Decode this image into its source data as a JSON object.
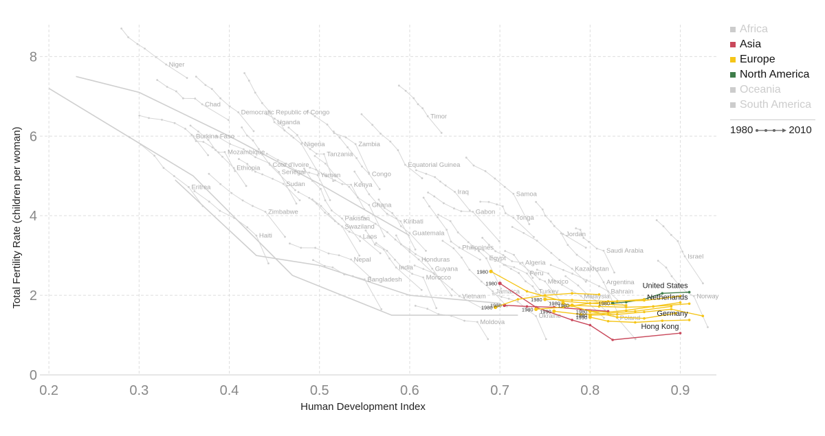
{
  "chart_data": {
    "type": "scatter",
    "title": "",
    "xlabel": "Human Development Index",
    "ylabel": "Total Fertility Rate (children per woman)",
    "xlim": [
      0.19,
      0.94
    ],
    "ylim": [
      0,
      8.8
    ],
    "xticks": [
      "0.2",
      "0.3",
      "0.4",
      "0.5",
      "0.6",
      "0.7",
      "0.8",
      "0.9"
    ],
    "yticks": [
      "0",
      "2",
      "4",
      "6",
      "8"
    ],
    "grid": true,
    "legend": {
      "placement": "right",
      "items": [
        {
          "name": "Africa",
          "color": "#cccccc",
          "active": false
        },
        {
          "name": "Asia",
          "color": "#c9485b",
          "active": true
        },
        {
          "name": "Europe",
          "color": "#f5c518",
          "active": true
        },
        {
          "name": "North America",
          "color": "#3e7d4a",
          "active": true
        },
        {
          "name": "Oceania",
          "color": "#cccccc",
          "active": false
        },
        {
          "name": "South America",
          "color": "#cccccc",
          "active": false
        }
      ],
      "timeline_start": "1980",
      "timeline_end": "2010"
    },
    "background_labels": [
      {
        "name": "Niger",
        "x": 0.33,
        "y": 7.8
      },
      {
        "name": "Chad",
        "x": 0.37,
        "y": 6.8
      },
      {
        "name": "Democratic Republic of Congo",
        "x": 0.41,
        "y": 6.6
      },
      {
        "name": "Uganda",
        "x": 0.45,
        "y": 6.35
      },
      {
        "name": "Timor",
        "x": 0.62,
        "y": 6.5
      },
      {
        "name": "Burkina Faso",
        "x": 0.36,
        "y": 6.0
      },
      {
        "name": "Nigeria",
        "x": 0.48,
        "y": 5.8
      },
      {
        "name": "Zambia",
        "x": 0.54,
        "y": 5.8
      },
      {
        "name": "Mozambique",
        "x": 0.395,
        "y": 5.6
      },
      {
        "name": "Tanzania",
        "x": 0.505,
        "y": 5.55
      },
      {
        "name": "Ethiopia",
        "x": 0.405,
        "y": 5.2
      },
      {
        "name": "Cote d'Ivoire",
        "x": 0.445,
        "y": 5.28
      },
      {
        "name": "Equatorial Guinea",
        "x": 0.595,
        "y": 5.28
      },
      {
        "name": "Senegal",
        "x": 0.455,
        "y": 5.1
      },
      {
        "name": "Yemen",
        "x": 0.498,
        "y": 5.02
      },
      {
        "name": "Congo",
        "x": 0.555,
        "y": 5.05
      },
      {
        "name": "Sudan",
        "x": 0.46,
        "y": 4.8
      },
      {
        "name": "Kenya",
        "x": 0.535,
        "y": 4.78
      },
      {
        "name": "Eritrea",
        "x": 0.355,
        "y": 4.72
      },
      {
        "name": "Iraq",
        "x": 0.65,
        "y": 4.6
      },
      {
        "name": "Samoa",
        "x": 0.715,
        "y": 4.55
      },
      {
        "name": "Ghana",
        "x": 0.555,
        "y": 4.27
      },
      {
        "name": "Zimbabwe",
        "x": 0.44,
        "y": 4.1
      },
      {
        "name": "Gabon",
        "x": 0.67,
        "y": 4.1
      },
      {
        "name": "Tonga",
        "x": 0.715,
        "y": 3.95
      },
      {
        "name": "Pakistan",
        "x": 0.525,
        "y": 3.93
      },
      {
        "name": "Kiribati",
        "x": 0.59,
        "y": 3.86
      },
      {
        "name": "Swaziland",
        "x": 0.525,
        "y": 3.73
      },
      {
        "name": "Guatemala",
        "x": 0.6,
        "y": 3.56
      },
      {
        "name": "Jordan",
        "x": 0.77,
        "y": 3.54
      },
      {
        "name": "Haiti",
        "x": 0.43,
        "y": 3.5
      },
      {
        "name": "Laos",
        "x": 0.545,
        "y": 3.48
      },
      {
        "name": "Philippines",
        "x": 0.655,
        "y": 3.2
      },
      {
        "name": "Saudi Arabia",
        "x": 0.815,
        "y": 3.12
      },
      {
        "name": "Israel",
        "x": 0.905,
        "y": 2.98
      },
      {
        "name": "Egypt",
        "x": 0.685,
        "y": 2.93
      },
      {
        "name": "Nepal",
        "x": 0.535,
        "y": 2.9
      },
      {
        "name": "Honduras",
        "x": 0.61,
        "y": 2.9
      },
      {
        "name": "Algeria",
        "x": 0.725,
        "y": 2.82
      },
      {
        "name": "India",
        "x": 0.585,
        "y": 2.7
      },
      {
        "name": "Guyana",
        "x": 0.625,
        "y": 2.67
      },
      {
        "name": "Kazakhstan",
        "x": 0.78,
        "y": 2.67
      },
      {
        "name": "Peru",
        "x": 0.73,
        "y": 2.55
      },
      {
        "name": "Bangladesh",
        "x": 0.55,
        "y": 2.4
      },
      {
        "name": "Morocco",
        "x": 0.615,
        "y": 2.45
      },
      {
        "name": "Mexico",
        "x": 0.75,
        "y": 2.35
      },
      {
        "name": "Argentina",
        "x": 0.815,
        "y": 2.33
      },
      {
        "name": "Jamaica",
        "x": 0.692,
        "y": 2.1
      },
      {
        "name": "Turkey",
        "x": 0.74,
        "y": 2.1
      },
      {
        "name": "Bahrain",
        "x": 0.82,
        "y": 2.1
      },
      {
        "name": "Vietnam",
        "x": 0.655,
        "y": 1.98
      },
      {
        "name": "Malaysia",
        "x": 0.79,
        "y": 1.98
      },
      {
        "name": "Norway",
        "x": 0.915,
        "y": 1.98
      },
      {
        "name": "Ukraine",
        "x": 0.74,
        "y": 1.48
      },
      {
        "name": "Poland",
        "x": 0.83,
        "y": 1.43
      },
      {
        "name": "Moldova",
        "x": 0.675,
        "y": 1.33
      }
    ],
    "series": [
      {
        "name": "United States",
        "region": "North America",
        "start_label": "1980",
        "x": [
          0.825,
          0.84,
          0.86,
          0.88,
          0.91
        ],
        "y": [
          1.8,
          1.83,
          1.9,
          2.05,
          2.08
        ]
      },
      {
        "name": "Netherlands",
        "region": "Europe",
        "start_label": "1980",
        "x": [
          0.8,
          0.82,
          0.84,
          0.87,
          0.91
        ],
        "y": [
          1.6,
          1.58,
          1.62,
          1.72,
          1.79
        ]
      },
      {
        "name": "Germany",
        "region": "Europe",
        "start_label": "1990",
        "x": [
          0.8,
          0.82,
          0.85,
          0.88,
          0.91
        ],
        "y": [
          1.45,
          1.35,
          1.32,
          1.36,
          1.38
        ]
      },
      {
        "name": "Hong Kong",
        "region": "Asia",
        "start_label": "1980",
        "x": [
          0.7,
          0.74,
          0.78,
          0.8,
          0.825,
          0.9
        ],
        "y": [
          2.3,
          1.7,
          1.38,
          1.25,
          0.88,
          1.05
        ]
      },
      {
        "name": "",
        "region": "Asia",
        "start_label": "1980",
        "x": [
          0.705,
          0.73,
          0.76,
          0.79,
          0.82
        ],
        "y": [
          1.75,
          1.72,
          1.7,
          1.65,
          1.6
        ]
      },
      {
        "name": "",
        "region": "Europe",
        "start_label": "1980",
        "x": [
          0.69,
          0.73,
          0.77,
          0.8,
          0.84
        ],
        "y": [
          2.6,
          2.1,
          1.85,
          1.8,
          1.75
        ]
      },
      {
        "name": "",
        "region": "Europe",
        "start_label": "1980",
        "x": [
          0.695,
          0.72,
          0.75,
          0.78,
          0.81
        ],
        "y": [
          1.7,
          1.9,
          2.0,
          2.05,
          2.02
        ]
      },
      {
        "name": "",
        "region": "Europe",
        "start_label": "1980",
        "x": [
          0.74,
          0.77,
          0.8,
          0.83,
          0.86
        ],
        "y": [
          1.65,
          1.7,
          1.8,
          1.85,
          1.9
        ]
      },
      {
        "name": "",
        "region": "Europe",
        "start_label": "1990",
        "x": [
          0.76,
          0.79,
          0.82,
          0.85,
          0.89
        ],
        "y": [
          1.6,
          1.52,
          1.55,
          1.6,
          1.72
        ]
      },
      {
        "name": "",
        "region": "Europe",
        "start_label": "1980",
        "x": [
          0.8,
          0.83,
          0.86,
          0.89,
          0.925
        ],
        "y": [
          1.5,
          1.52,
          1.58,
          1.65,
          1.48
        ]
      },
      {
        "name": "",
        "region": "Europe",
        "start_label": "1980",
        "x": [
          0.75,
          0.78,
          0.82,
          0.86,
          0.9
        ],
        "y": [
          1.9,
          1.88,
          1.85,
          1.87,
          1.98
        ]
      },
      {
        "name": "",
        "region": "Europe",
        "start_label": "1980",
        "x": [
          0.77,
          0.8,
          0.83,
          0.86,
          0.895
        ],
        "y": [
          1.8,
          1.6,
          1.45,
          1.42,
          1.55
        ]
      },
      {
        "name": "",
        "region": "Europe",
        "start_label": "1980",
        "x": [
          0.78,
          0.81,
          0.84,
          0.87,
          0.9
        ],
        "y": [
          1.75,
          1.72,
          1.7,
          1.72,
          1.82
        ]
      }
    ]
  }
}
